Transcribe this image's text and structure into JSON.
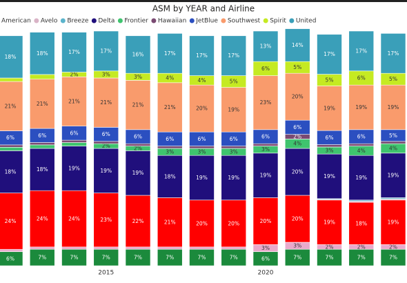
{
  "chart_data": {
    "type": "stacked_bar_100",
    "title": "ASM by YEAR and Airline",
    "categories": [
      null,
      null,
      null,
      "2015",
      null,
      null,
      null,
      null,
      "2020",
      null,
      null,
      null,
      null
    ],
    "ylim": [
      0,
      100
    ],
    "series": [
      {
        "color": "#1b8a3c",
        "values": [
          6,
          7,
          7,
          7,
          7,
          7,
          7,
          7,
          6,
          7,
          7,
          7,
          7
        ],
        "value_labels": [
          "6%",
          "7%",
          "7%",
          "7%",
          "7%",
          "7%",
          "7%",
          "7%",
          "6%",
          "7%",
          "7%",
          "7%",
          "7%"
        ]
      },
      {
        "color": "#e9a9cb",
        "values": [
          1,
          1,
          1,
          1,
          1,
          1,
          1,
          1,
          3,
          3,
          2,
          2,
          2
        ],
        "value_labels": [
          null,
          null,
          null,
          null,
          null,
          null,
          null,
          null,
          "3%",
          "3%",
          "2%",
          "2%",
          "2%"
        ]
      },
      {
        "name": "American",
        "color": "#ff0000",
        "values": [
          24,
          24,
          24,
          23,
          22,
          21,
          20,
          20,
          20,
          20,
          19,
          18,
          19
        ],
        "value_labels": [
          "24%",
          "24%",
          "24%",
          "23%",
          "22%",
          "21%",
          "20%",
          "20%",
          "20%",
          "20%",
          "19%",
          "18%",
          "19%"
        ]
      },
      {
        "name": "Avelo",
        "color": "#d9b3c6",
        "values": [
          0,
          0,
          0,
          0,
          0,
          0,
          0,
          0,
          0,
          0,
          0.3,
          0.5,
          0.5
        ]
      },
      {
        "name": "Breeze",
        "color": "#5bb4cc",
        "values": [
          0,
          0,
          0,
          0,
          0,
          0,
          0,
          0,
          0,
          0,
          0.3,
          0.5,
          0.5
        ]
      },
      {
        "name": "Delta",
        "color": "#200f7c",
        "values": [
          18,
          18,
          19,
          19,
          19,
          18,
          19,
          19,
          19,
          20,
          19,
          19,
          19
        ],
        "value_labels": [
          "18%",
          "18%",
          "19%",
          "19%",
          "19%",
          "18%",
          "19%",
          "19%",
          "19%",
          "20%",
          "19%",
          "19%",
          "19%"
        ]
      },
      {
        "name": "Frontier",
        "color": "#3fc46e",
        "values": [
          1.5,
          1.5,
          1.5,
          2,
          2,
          3,
          3,
          3,
          3,
          4,
          3,
          4,
          4
        ],
        "value_labels": [
          null,
          null,
          null,
          "2%",
          "2%",
          "3%",
          "3%",
          "3%",
          "3%",
          "4%",
          "3%",
          "4%",
          "4%"
        ]
      },
      {
        "name": "Hawaiian",
        "color": "#7a4a72",
        "values": [
          1,
          1,
          1,
          1,
          1,
          1,
          1,
          1,
          1,
          2,
          1,
          1,
          1
        ],
        "value_labels": [
          null,
          null,
          null,
          null,
          null,
          null,
          null,
          null,
          null,
          "2%",
          null,
          null,
          null
        ]
      },
      {
        "name": "JetBlue",
        "color": "#2b4fc0",
        "values": [
          6,
          6,
          6,
          6,
          6,
          6,
          6,
          6,
          6,
          6,
          6,
          6,
          5
        ],
        "value_labels": [
          "6%",
          "6%",
          "6%",
          "6%",
          "6%",
          "6%",
          "6%",
          "6%",
          "6%",
          "6%",
          "6%",
          "6%",
          "5%"
        ]
      },
      {
        "name": "Southwest",
        "color": "#f99b6c",
        "values": [
          21,
          21,
          21,
          21,
          21,
          21,
          20,
          19,
          23,
          20,
          19,
          19,
          19
        ],
        "value_labels": [
          "21%",
          "21%",
          "21%",
          "21%",
          "21%",
          "21%",
          "20%",
          "19%",
          "23%",
          "20%",
          "19%",
          "19%",
          "19%"
        ]
      },
      {
        "name": "Spirit",
        "color": "#c5ea22",
        "values": [
          1.5,
          2,
          2,
          3,
          3,
          4,
          4,
          5,
          6,
          5,
          5,
          6,
          5
        ],
        "value_labels": [
          null,
          null,
          "2%",
          "3%",
          "3%",
          "4%",
          "4%",
          "5%",
          "6%",
          "5%",
          "5%",
          "6%",
          "5%"
        ]
      },
      {
        "name": "United",
        "color": "#3a9fb9",
        "values": [
          18,
          18,
          17,
          17,
          16,
          17,
          17,
          17,
          13,
          14,
          17,
          17,
          17
        ],
        "value_labels": [
          "18%",
          "18%",
          "17%",
          "17%",
          "16%",
          "17%",
          "17%",
          "17%",
          "13%",
          "14%",
          "17%",
          "17%",
          "17%"
        ]
      }
    ]
  }
}
